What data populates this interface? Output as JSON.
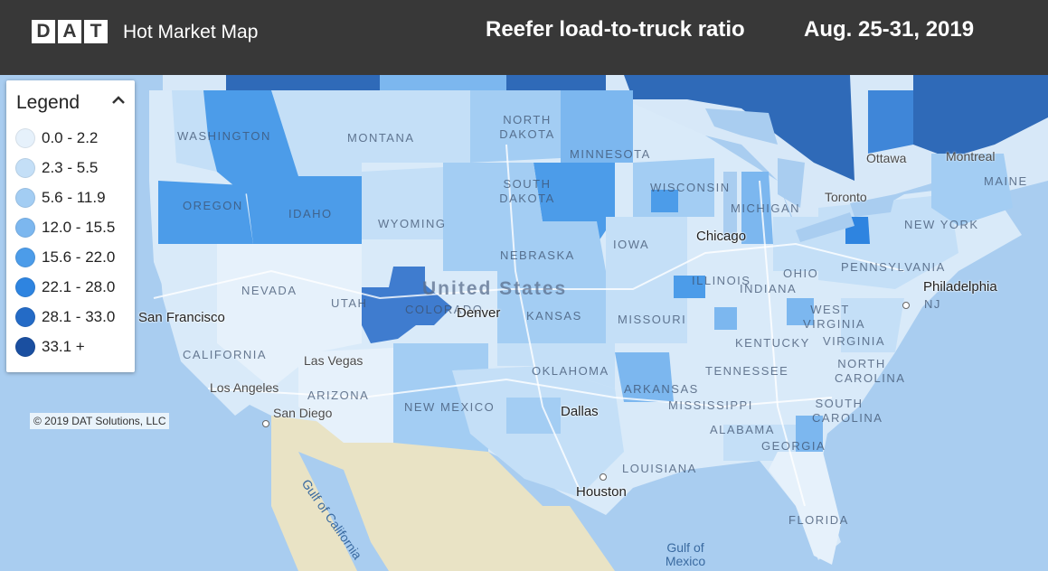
{
  "header": {
    "logo_letters": [
      "D",
      "A",
      "T"
    ],
    "app_title": "Hot Market Map",
    "report_title": "Reefer load-to-truck ratio",
    "report_date": "Aug. 25-31, 2019"
  },
  "legend": {
    "title": "Legend",
    "toggle_icon": "chevron-up-icon",
    "items": [
      {
        "label": "0.0 - 2.2",
        "color": "#e6f1fb"
      },
      {
        "label": "2.3 - 5.5",
        "color": "#c4dff7"
      },
      {
        "label": "5.6 - 11.9",
        "color": "#a3cdf3"
      },
      {
        "label": "12.0 - 15.5",
        "color": "#7cb7ef"
      },
      {
        "label": "15.6 - 22.0",
        "color": "#4c9ce9"
      },
      {
        "label": "22.1 - 28.0",
        "color": "#2e84e0"
      },
      {
        "label": "28.1 - 33.0",
        "color": "#246bc6"
      },
      {
        "label": "33.1 +",
        "color": "#1a4fa0"
      }
    ]
  },
  "map": {
    "copyright": "© 2019 DAT Solutions, LLC",
    "country_label": "United States",
    "cities": [
      "San Francisco",
      "Las Vegas",
      "Los Angeles",
      "San Diego",
      "Denver",
      "Chicago",
      "Dallas",
      "Houston",
      "Philadelphia",
      "Toronto",
      "Ottawa",
      "Montreal"
    ],
    "states": [
      "WASHINGTON",
      "OREGON",
      "CALIFORNIA",
      "NEVADA",
      "IDAHO",
      "MONTANA",
      "WYOMING",
      "UTAH",
      "ARIZONA",
      "COLORADO",
      "NEW MEXICO",
      "NORTH DAKOTA",
      "SOUTH DAKOTA",
      "NEBRASKA",
      "KANSAS",
      "OKLAHOMA",
      "MINNESOTA",
      "IOWA",
      "MISSOURI",
      "ARKANSAS",
      "LOUISIANA",
      "WISCONSIN",
      "MICHIGAN",
      "ILLINOIS",
      "INDIANA",
      "OHIO",
      "KENTUCKY",
      "TENNESSEE",
      "MISSISSIPPI",
      "ALABAMA",
      "GEORGIA",
      "FLORIDA",
      "SOUTH CAROLINA",
      "NORTH CAROLINA",
      "VIRGINIA",
      "WEST VIRGINIA",
      "PENNSYLVANIA",
      "NEW YORK",
      "MAINE",
      "NJ"
    ],
    "water": [
      "Gulf of California",
      "Gulf of Mexico"
    ]
  }
}
